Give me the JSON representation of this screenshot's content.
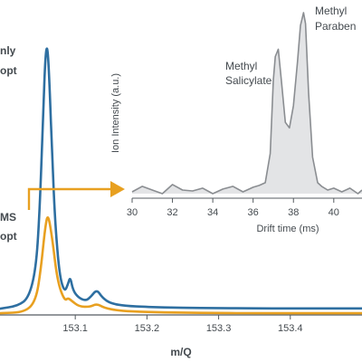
{
  "chart_data": [
    {
      "type": "line",
      "role": "main-spectrum",
      "xlabel": "m/Q",
      "ylabel": "",
      "xlim": [
        152.995,
        153.5
      ],
      "ylim": [
        0,
        1.0
      ],
      "x_ticks": [
        "153.1",
        "153.2",
        "153.3",
        "153.4"
      ],
      "x_tick_values": [
        153.1,
        153.2,
        153.3,
        153.4
      ],
      "grid": false,
      "legend_fragments": [
        {
          "text": "nly",
          "color": "#2e6fa1"
        },
        {
          "text": "opt",
          "color": "#2e6fa1"
        },
        {
          "text": "MS",
          "color": "#e8a020"
        },
        {
          "text": "opt",
          "color": "#e8a020"
        }
      ],
      "series": [
        {
          "color": "#2e6fa1",
          "x": [
            152.995,
            153.02,
            153.035,
            153.045,
            153.05,
            153.055,
            153.058,
            153.061,
            153.064,
            153.068,
            153.072,
            153.078,
            153.085,
            153.09,
            153.093,
            153.097,
            153.105,
            153.115,
            153.122,
            153.13,
            153.138,
            153.15,
            153.17,
            153.2,
            153.25,
            153.3,
            153.35,
            153.4,
            153.45,
            153.5
          ],
          "y": [
            0.022,
            0.032,
            0.06,
            0.16,
            0.35,
            0.68,
            0.905,
            0.96,
            0.82,
            0.55,
            0.32,
            0.14,
            0.08,
            0.11,
            0.135,
            0.085,
            0.06,
            0.05,
            0.065,
            0.09,
            0.06,
            0.04,
            0.032,
            0.028,
            0.025,
            0.024,
            0.023,
            0.023,
            0.023,
            0.023
          ]
        },
        {
          "color": "#e8a020",
          "x": [
            152.995,
            153.03,
            153.045,
            153.052,
            153.058,
            153.062,
            153.068,
            153.075,
            153.085,
            153.09,
            153.095,
            153.105,
            153.12,
            153.13,
            153.14,
            153.16,
            153.2,
            153.25,
            153.3,
            153.35,
            153.4,
            153.45,
            153.5
          ],
          "y": [
            0.006,
            0.01,
            0.05,
            0.16,
            0.31,
            0.36,
            0.27,
            0.12,
            0.05,
            0.06,
            0.05,
            0.03,
            0.028,
            0.04,
            0.025,
            0.015,
            0.01,
            0.008,
            0.007,
            0.006,
            0.006,
            0.006,
            0.006
          ]
        }
      ]
    },
    {
      "type": "area",
      "role": "inset-drift",
      "xlabel": "Drift time (ms)",
      "ylabel": "Ion Intensity (a.u.)",
      "xlim": [
        30,
        41.4
      ],
      "ylim": [
        0,
        1.0
      ],
      "x_ticks": [
        "30",
        "32",
        "34",
        "36",
        "38",
        "40"
      ],
      "x_tick_values": [
        30,
        32,
        34,
        36,
        38,
        40
      ],
      "grid": false,
      "annotations": [
        {
          "lines": [
            "Methyl",
            "Salicylate"
          ],
          "x": 37.2
        },
        {
          "lines": [
            "Methyl",
            "Paraben"
          ],
          "x": 38.6
        }
      ],
      "series": [
        {
          "color": "#8a8d91",
          "fill": "#e3e4e6",
          "x": [
            30,
            30.5,
            31,
            31.5,
            32,
            32.5,
            33,
            33.5,
            34,
            34.5,
            35,
            35.5,
            36,
            36.3,
            36.6,
            36.85,
            37.0,
            37.1,
            37.25,
            37.4,
            37.6,
            37.8,
            38.0,
            38.2,
            38.35,
            38.5,
            38.6,
            38.75,
            38.95,
            39.2,
            39.4,
            39.7,
            40,
            40.4,
            40.8,
            41.2,
            41.4
          ],
          "y": [
            0.01,
            0.04,
            0.02,
            0.0,
            0.05,
            0.02,
            0.015,
            0.03,
            0.0,
            0.025,
            0.04,
            0.01,
            0.035,
            0.045,
            0.06,
            0.22,
            0.62,
            0.75,
            0.79,
            0.62,
            0.39,
            0.36,
            0.48,
            0.72,
            0.92,
            0.99,
            0.93,
            0.55,
            0.2,
            0.06,
            0.04,
            0.02,
            0.03,
            0.01,
            0.03,
            0.0,
            0.02
          ]
        }
      ]
    }
  ],
  "colors": {
    "blue": "#2e6fa1",
    "orange": "#e8a020",
    "axis": "#555b60",
    "text": "#444a4f",
    "inset_line": "#8a8d91",
    "inset_fill": "#e3e4e6"
  },
  "callout_arrow": {
    "color": "#e8a020",
    "shape": "arrow-right"
  }
}
